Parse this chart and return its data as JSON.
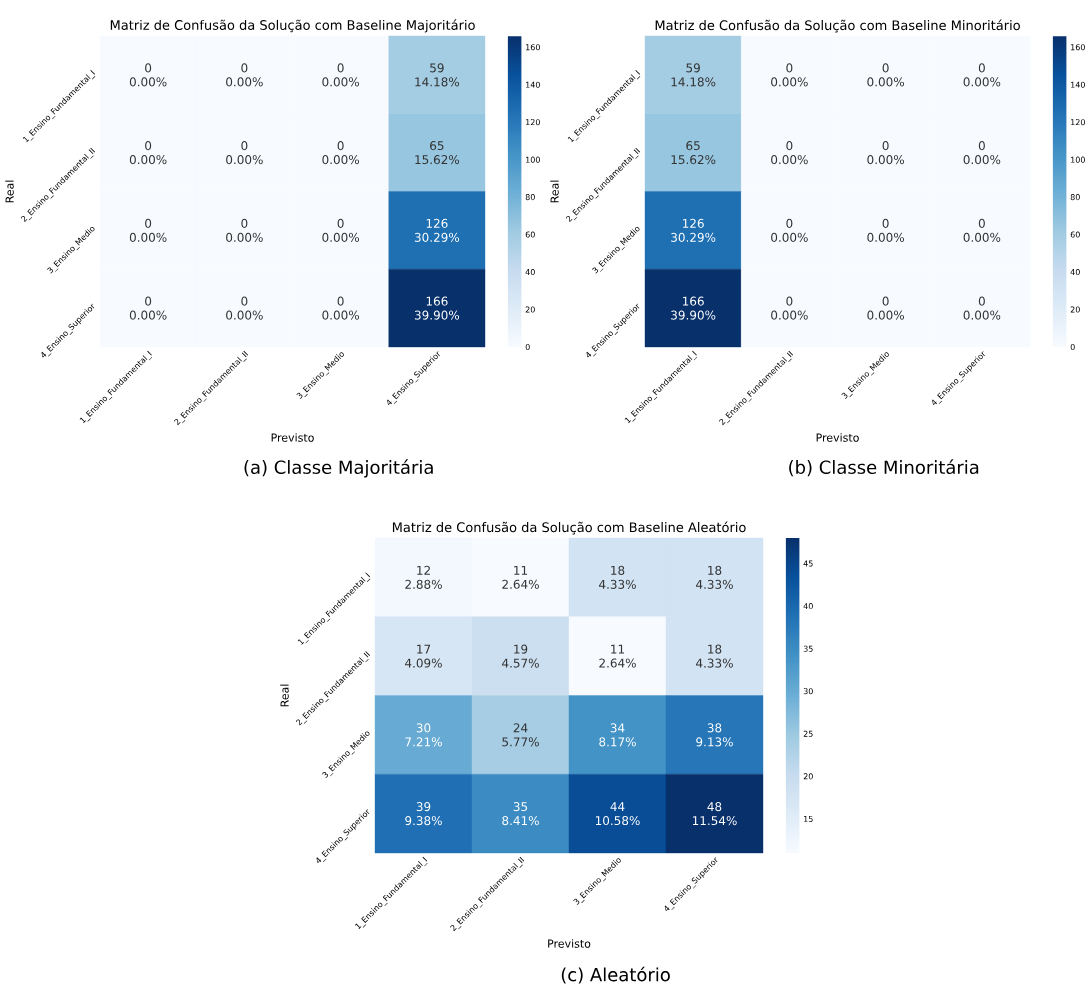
{
  "chart_data": [
    {
      "type": "heatmap",
      "title": "Matriz de Confusão da Solução com Baseline Majoritário",
      "xlabel": "Previsto",
      "ylabel": "Real",
      "categories": [
        "1_Ensino_Fundamental_I",
        "2_Ensino_Fundamental_II",
        "3_Ensino_Medio",
        "4_Ensino_Superior"
      ],
      "y_categories": [
        "1_Ensino_Fundamental_I",
        "2_Ensino_Fundamental_II",
        "3_Ensino_Medio",
        "4_Ensino_Superior"
      ],
      "cells": [
        [
          0,
          0,
          0,
          59
        ],
        [
          0,
          0,
          0,
          65
        ],
        [
          0,
          0,
          0,
          126
        ],
        [
          0,
          0,
          0,
          166
        ]
      ],
      "cell_labels": [
        [
          "0 0.00%",
          "0 0.00%",
          "0 0.00%",
          "59 14.18%"
        ],
        [
          "0 0.00%",
          "0 0.00%",
          "0 0.00%",
          "65 15.62%"
        ],
        [
          "0 0.00%",
          "0 0.00%",
          "0 0.00%",
          "126 30.29%"
        ],
        [
          "0 0.00%",
          "0 0.00%",
          "0 0.00%",
          "166 39.90%"
        ]
      ],
      "clim": [
        0,
        166
      ],
      "cticks": [
        0,
        20,
        40,
        60,
        80,
        100,
        120,
        140,
        160
      ],
      "annotations": [
        "(a) Classe Majoritária"
      ]
    },
    {
      "type": "heatmap",
      "title": "Matriz de Confusão da Solução com Baseline Minoritário",
      "xlabel": "Previsto",
      "ylabel": "Real",
      "categories": [
        "1_Ensino_Fundamental_I",
        "2_Ensino_Fundamental_II",
        "3_Ensino_Medio",
        "4_Ensino_Superior"
      ],
      "y_categories": [
        "1_Ensino_Fundamental_I",
        "2_Ensino_Fundamental_II",
        "3_Ensino_Medio",
        "4_Ensino_Superior"
      ],
      "cells": [
        [
          59,
          0,
          0,
          0
        ],
        [
          65,
          0,
          0,
          0
        ],
        [
          126,
          0,
          0,
          0
        ],
        [
          166,
          0,
          0,
          0
        ]
      ],
      "cell_labels": [
        [
          "59 14.18%",
          "0 0.00%",
          "0 0.00%",
          "0 0.00%"
        ],
        [
          "65 15.62%",
          "0 0.00%",
          "0 0.00%",
          "0 0.00%"
        ],
        [
          "126 30.29%",
          "0 0.00%",
          "0 0.00%",
          "0 0.00%"
        ],
        [
          "166 39.90%",
          "0 0.00%",
          "0 0.00%",
          "0 0.00%"
        ]
      ],
      "clim": [
        0,
        166
      ],
      "cticks": [
        0,
        20,
        40,
        60,
        80,
        100,
        120,
        140,
        160
      ],
      "annotations": [
        "(b) Classe Minoritária"
      ]
    },
    {
      "type": "heatmap",
      "title": "Matriz de Confusão da Solução com Baseline Aleatório",
      "xlabel": "Previsto",
      "ylabel": "Real",
      "categories": [
        "1_Ensino_Fundamental_I",
        "2_Ensino_Fundamental_II",
        "3_Ensino_Medio",
        "4_Ensino_Superior"
      ],
      "y_categories": [
        "1_Ensino_Fundamental_I",
        "2_Ensino_Fundamental_II",
        "3_Ensino_Medio",
        "4_Ensino_Superior"
      ],
      "cells": [
        [
          12,
          11,
          18,
          18
        ],
        [
          17,
          19,
          11,
          18
        ],
        [
          30,
          24,
          34,
          38
        ],
        [
          39,
          35,
          44,
          48
        ]
      ],
      "cell_labels": [
        [
          "12 2.88%",
          "11 2.64%",
          "18 4.33%",
          "18 4.33%"
        ],
        [
          "17 4.09%",
          "19 4.57%",
          "11 2.64%",
          "18 4.33%"
        ],
        [
          "30 7.21%",
          "24 5.77%",
          "34 8.17%",
          "38 9.13%"
        ],
        [
          "39 9.38%",
          "35 8.41%",
          "44 10.58%",
          "48 11.54%"
        ]
      ],
      "clim": [
        11,
        48
      ],
      "cticks": [
        15,
        20,
        25,
        30,
        35,
        40,
        45
      ],
      "annotations": [
        "(c) Aleatório"
      ]
    }
  ]
}
